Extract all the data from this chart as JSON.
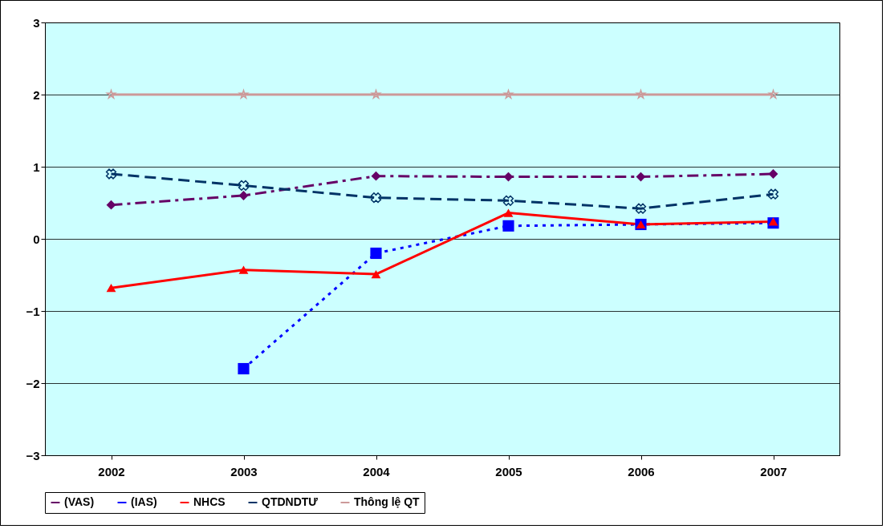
{
  "chart_data": {
    "type": "line",
    "categories": [
      "2002",
      "2003",
      "2004",
      "2005",
      "2006",
      "2007"
    ],
    "series": [
      {
        "name": "(VAS)",
        "color": "#660066",
        "marker": "diamond",
        "line_style": "dashdot",
        "values": [
          0.47,
          0.6,
          0.87,
          0.86,
          0.86,
          0.9
        ]
      },
      {
        "name": "(IAS)",
        "color": "#0000ff",
        "marker": "square",
        "line_style": "dotted",
        "values": [
          null,
          -1.8,
          -0.2,
          0.18,
          0.2,
          0.22
        ]
      },
      {
        "name": "NHCS",
        "color": "#ff0000",
        "marker": "triangle",
        "line_style": "solid",
        "values": [
          -0.68,
          -0.43,
          -0.49,
          0.36,
          0.2,
          0.24
        ]
      },
      {
        "name": "QTDNDTƯ",
        "color": "#003366",
        "marker": "cross",
        "line_style": "dashed",
        "values": [
          0.9,
          0.74,
          0.57,
          0.53,
          0.42,
          0.62
        ]
      },
      {
        "name": "Thông lệ QT",
        "color": "#cc9999",
        "marker": "star",
        "line_style": "solid",
        "values": [
          2,
          2,
          2,
          2,
          2,
          2
        ]
      }
    ],
    "ylim": [
      -3,
      3
    ],
    "yticks": [
      -3,
      -2,
      -1,
      0,
      1,
      2,
      3
    ],
    "grid": "y",
    "legend": "bottom"
  }
}
